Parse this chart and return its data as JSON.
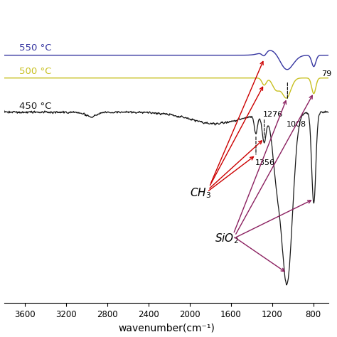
{
  "xlabel": "wavenumber(cm⁻¹)",
  "colors_550": "#3535a0",
  "colors_500": "#c8c020",
  "colors_450": "#1a1a1a",
  "color_red": "#cc0000",
  "color_purple": "#8b2060",
  "xmin": 650,
  "xmax": 3800,
  "ylim_min": -0.05,
  "ylim_max": 1.0,
  "xticks": [
    3600,
    3200,
    2800,
    2400,
    2000,
    1600,
    1200,
    800
  ],
  "xtick_labels": [
    "3600",
    "3200",
    "2800",
    "2400",
    "2000",
    "1600",
    "1200",
    "800"
  ]
}
